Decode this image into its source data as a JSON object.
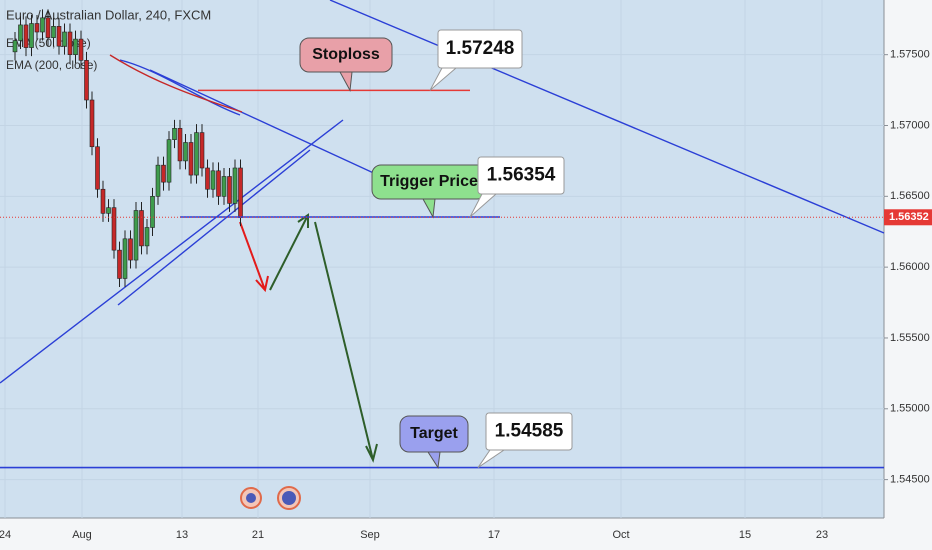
{
  "chart_data": {
    "type": "candlestick",
    "title": "Euro / Australian Dollar, 240, FXCM",
    "indicators": [
      "EMA (50, close)",
      "EMA (200, close)"
    ],
    "x_labels": [
      "24",
      "Aug",
      "13",
      "21",
      "Sep",
      "17",
      "Oct",
      "15",
      "23"
    ],
    "open": [
      1.5752,
      1.576,
      1.5771,
      1.5755,
      1.5772,
      1.5766,
      1.5776,
      1.5762,
      1.577,
      1.5756,
      1.5766,
      1.575,
      1.5761,
      1.5746,
      1.5718,
      1.5685,
      1.5655,
      1.5638,
      1.5642,
      1.5612,
      1.5592,
      1.562,
      1.5605,
      1.564,
      1.5615,
      1.5628,
      1.565,
      1.5672,
      1.566,
      1.569,
      1.5698,
      1.5675,
      1.5688,
      1.5665,
      1.5695,
      1.567,
      1.5655,
      1.5668,
      1.565,
      1.5664,
      1.5645,
      1.567
    ],
    "high": [
      1.5766,
      1.5777,
      1.5777,
      1.5778,
      1.5778,
      1.5782,
      1.5782,
      1.5776,
      1.5776,
      1.5772,
      1.5772,
      1.5767,
      1.5767,
      1.5752,
      1.5724,
      1.5691,
      1.5661,
      1.5648,
      1.5648,
      1.5618,
      1.5626,
      1.5626,
      1.5646,
      1.5646,
      1.5634,
      1.5656,
      1.5678,
      1.5678,
      1.5696,
      1.5704,
      1.5704,
      1.5694,
      1.5694,
      1.5701,
      1.5701,
      1.5676,
      1.5674,
      1.5674,
      1.567,
      1.567,
      1.5676,
      1.5676
    ],
    "low": [
      1.5746,
      1.5754,
      1.5749,
      1.5749,
      1.576,
      1.576,
      1.5756,
      1.5756,
      1.575,
      1.575,
      1.5744,
      1.5744,
      1.574,
      1.5712,
      1.5679,
      1.5649,
      1.5632,
      1.5632,
      1.5606,
      1.5586,
      1.5586,
      1.5599,
      1.5599,
      1.5609,
      1.5609,
      1.5622,
      1.5644,
      1.5654,
      1.5654,
      1.5684,
      1.5669,
      1.5669,
      1.5659,
      1.5659,
      1.5664,
      1.5649,
      1.5649,
      1.5644,
      1.5644,
      1.5639,
      1.5639,
      1.5629
    ],
    "close": [
      1.576,
      1.5771,
      1.5755,
      1.5772,
      1.5766,
      1.5776,
      1.5762,
      1.577,
      1.5756,
      1.5766,
      1.575,
      1.5761,
      1.5746,
      1.5718,
      1.5685,
      1.5655,
      1.5638,
      1.5642,
      1.5612,
      1.5592,
      1.562,
      1.5605,
      1.564,
      1.5615,
      1.5628,
      1.565,
      1.5672,
      1.566,
      1.569,
      1.5698,
      1.5675,
      1.5688,
      1.5665,
      1.5695,
      1.567,
      1.5655,
      1.5668,
      1.565,
      1.5664,
      1.5645,
      1.567,
      1.5635
    ],
    "up_color": "#3f9c4d",
    "down_color": "#c62828",
    "ylim": [
      1.54229,
      1.57886
    ],
    "yticks": [
      {
        "value": 1.545,
        "label": "1.54500"
      },
      {
        "value": 1.55,
        "label": "1.55000"
      },
      {
        "value": 1.555,
        "label": "1.55500"
      },
      {
        "value": 1.56,
        "label": "1.56000"
      },
      {
        "value": 1.565,
        "label": "1.56500"
      },
      {
        "value": 1.57,
        "label": "1.57000"
      },
      {
        "value": 1.575,
        "label": "1.57500"
      }
    ],
    "last_price": 1.56352,
    "levels": [
      {
        "name": "Stoploss",
        "value": 1.57248,
        "color": "#e53935",
        "box_color": "#e8a0a8"
      },
      {
        "name": "Trigger Price",
        "value": 1.56354,
        "color": "#2b3fd6",
        "box_color": "#8ee08e"
      },
      {
        "name": "Target",
        "value": 1.54585,
        "color": "#2b3fd6",
        "box_color": "#9aa0ee"
      }
    ]
  }
}
